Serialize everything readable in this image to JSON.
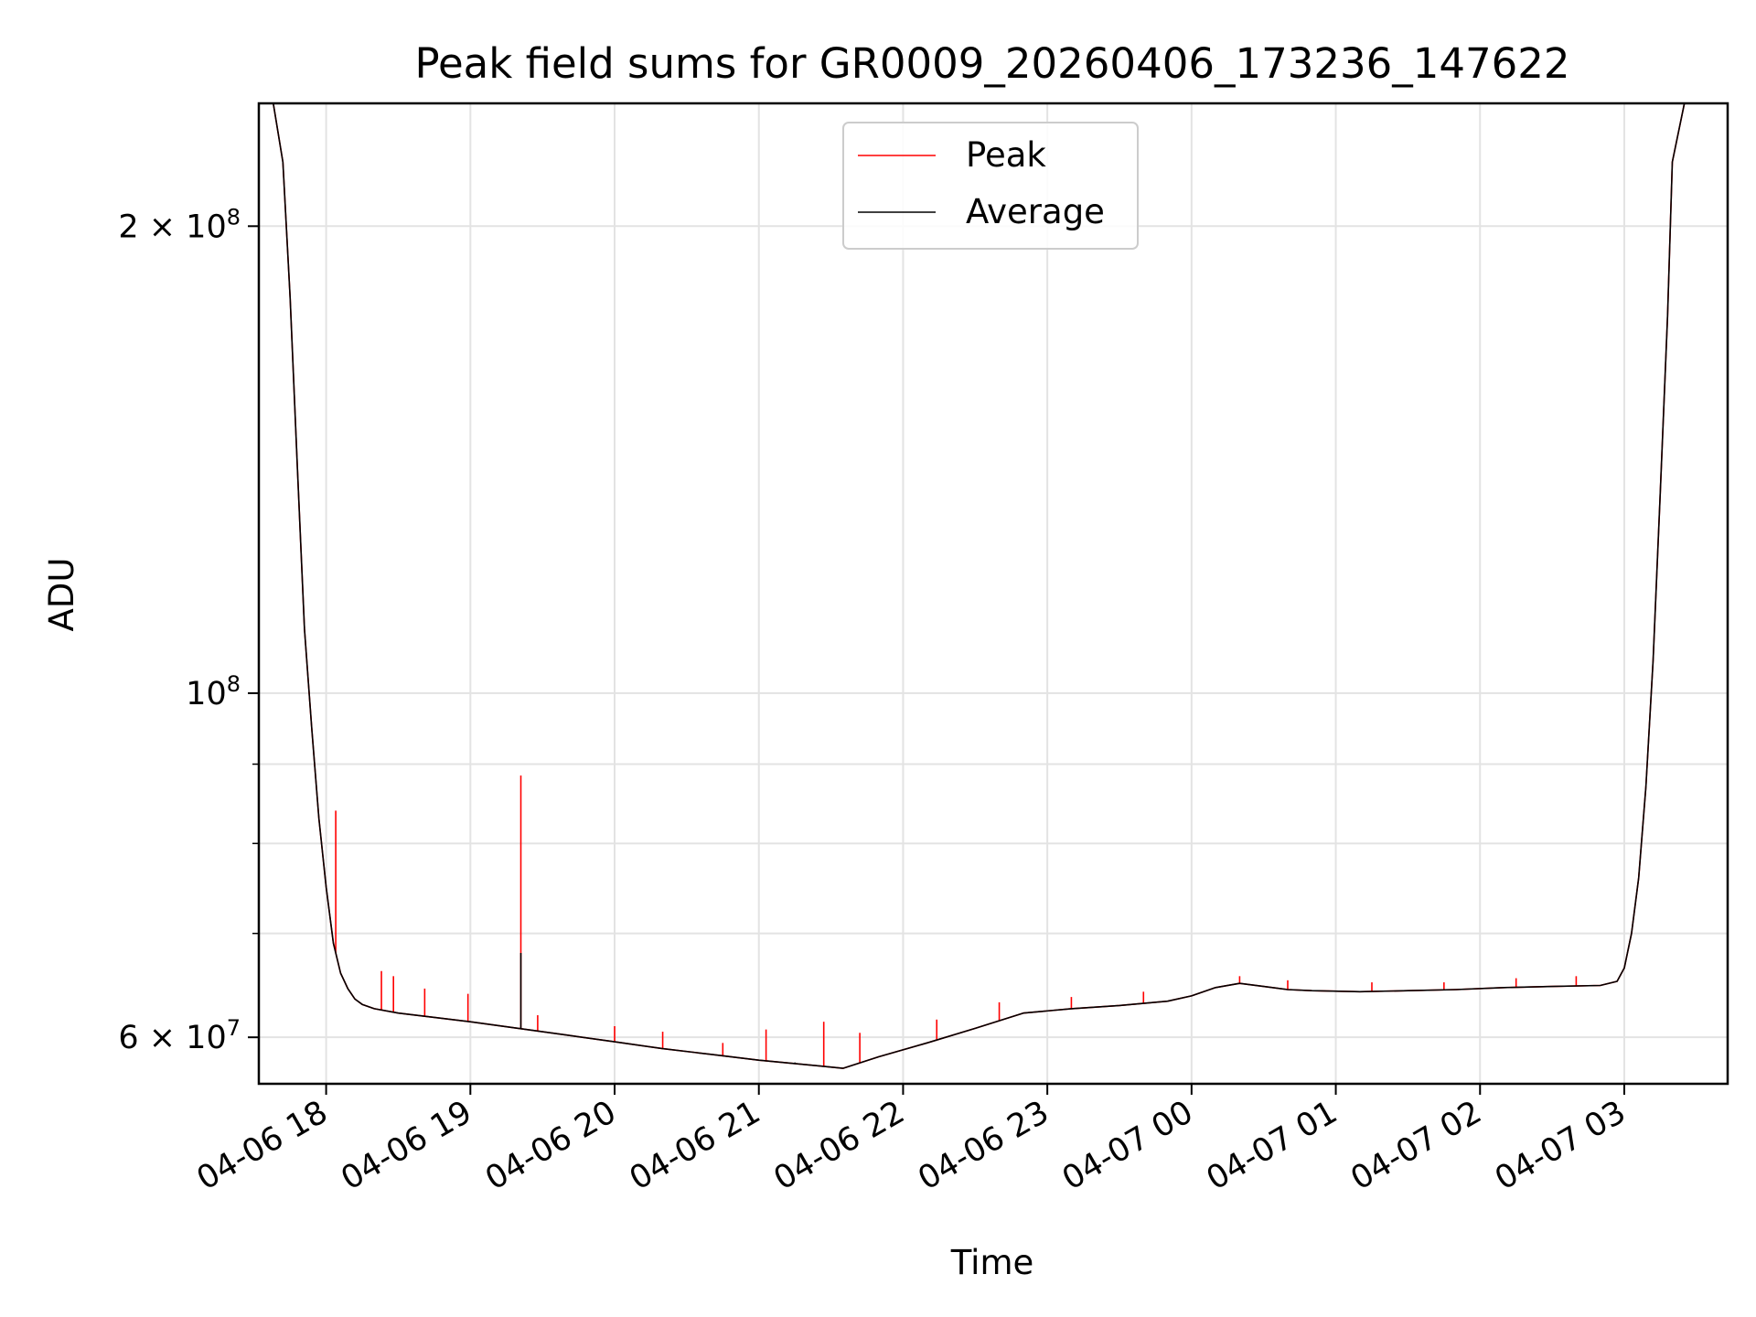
{
  "chart_data": {
    "type": "line",
    "title": "Peak field sums for GR0009_20260406_173236_147622",
    "xlabel": "Time",
    "ylabel": "ADU",
    "y_scale": "log",
    "ylim": [
      56000000,
      240000000
    ],
    "xlim": [
      "2026-04-06 17:32",
      "2026-04-07 03:43"
    ],
    "x_ticks": [
      {
        "value": "2026-04-06 18:00",
        "label": "04-06 18"
      },
      {
        "value": "2026-04-06 19:00",
        "label": "04-06 19"
      },
      {
        "value": "2026-04-06 20:00",
        "label": "04-06 20"
      },
      {
        "value": "2026-04-06 21:00",
        "label": "04-06 21"
      },
      {
        "value": "2026-04-06 22:00",
        "label": "04-06 22"
      },
      {
        "value": "2026-04-06 23:00",
        "label": "04-06 23"
      },
      {
        "value": "2026-04-07 00:00",
        "label": "04-07 00"
      },
      {
        "value": "2026-04-07 01:00",
        "label": "04-07 01"
      },
      {
        "value": "2026-04-07 02:00",
        "label": "04-07 02"
      },
      {
        "value": "2026-04-07 03:00",
        "label": "04-07 03"
      }
    ],
    "y_major_ticks": [
      {
        "value": 60000000,
        "base": "6 × 10",
        "exp": "7"
      },
      {
        "value": 100000000,
        "base": "10",
        "exp": "8"
      },
      {
        "value": 200000000,
        "base": "2 × 10",
        "exp": "8"
      }
    ],
    "y_minor_ticks": [
      70000000,
      80000000,
      90000000
    ],
    "grid": true,
    "legend_position": "upper center",
    "series": [
      {
        "name": "Peak",
        "color": "#ff0000",
        "x": [
          "2026-04-06 17:32",
          "2026-04-06 17:38",
          "2026-04-06 17:42",
          "2026-04-06 17:45",
          "2026-04-06 17:48",
          "2026-04-06 17:51",
          "2026-04-06 17:54",
          "2026-04-06 17:57",
          "2026-04-06 18:00",
          "2026-04-06 18:03",
          "2026-04-06 18:06",
          "2026-04-06 18:09",
          "2026-04-06 18:12",
          "2026-04-06 18:15",
          "2026-04-06 18:20",
          "2026-04-06 18:30",
          "2026-04-06 18:45",
          "2026-04-06 19:00",
          "2026-04-06 19:20",
          "2026-04-06 19:40",
          "2026-04-06 20:00",
          "2026-04-06 20:20",
          "2026-04-06 20:40",
          "2026-04-06 21:00",
          "2026-04-06 21:20",
          "2026-04-06 21:35",
          "2026-04-06 21:50",
          "2026-04-06 22:10",
          "2026-04-06 22:30",
          "2026-04-06 22:50",
          "2026-04-06 23:10",
          "2026-04-06 23:30",
          "2026-04-06 23:50",
          "2026-04-07 00:00",
          "2026-04-07 00:10",
          "2026-04-07 00:20",
          "2026-04-07 00:30",
          "2026-04-07 00:40",
          "2026-04-07 00:50",
          "2026-04-07 01:10",
          "2026-04-07 01:30",
          "2026-04-07 01:50",
          "2026-04-07 02:10",
          "2026-04-07 02:30",
          "2026-04-07 02:50",
          "2026-04-07 02:57",
          "2026-04-07 03:00",
          "2026-04-07 03:03",
          "2026-04-07 03:06",
          "2026-04-07 03:09",
          "2026-04-07 03:12",
          "2026-04-07 03:15",
          "2026-04-07 03:18",
          "2026-04-07 03:20",
          "2026-04-07 03:25",
          "2026-04-07 03:43"
        ],
        "y": [
          240000000,
          240000000,
          220000000,
          180000000,
          140000000,
          110000000,
          95000000,
          83000000,
          75000000,
          69000000,
          66000000,
          64500000,
          63500000,
          63000000,
          62600000,
          62200000,
          61800000,
          61400000,
          60800000,
          60200000,
          59600000,
          59000000,
          58500000,
          58000000,
          57600000,
          57300000,
          58300000,
          59500000,
          60800000,
          62200000,
          62600000,
          62900000,
          63300000,
          63800000,
          64600000,
          65000000,
          64700000,
          64400000,
          64300000,
          64200000,
          64300000,
          64400000,
          64600000,
          64700000,
          64800000,
          65200000,
          66500000,
          70000000,
          76000000,
          87000000,
          105000000,
          135000000,
          175000000,
          220000000,
          240000000,
          240000000
        ],
        "spikes": [
          {
            "x": "2026-04-06 18:04",
            "y": 84000000
          },
          {
            "x": "2026-04-06 18:23",
            "y": 66200000
          },
          {
            "x": "2026-04-06 18:28",
            "y": 65700000
          },
          {
            "x": "2026-04-06 18:41",
            "y": 64500000
          },
          {
            "x": "2026-04-06 18:59",
            "y": 64000000
          },
          {
            "x": "2026-04-06 19:21",
            "y": 88500000
          },
          {
            "x": "2026-04-06 19:28",
            "y": 62000000
          },
          {
            "x": "2026-04-06 20:00",
            "y": 61000000
          },
          {
            "x": "2026-04-06 20:20",
            "y": 60500000
          },
          {
            "x": "2026-04-06 20:45",
            "y": 59500000
          },
          {
            "x": "2026-04-06 21:03",
            "y": 60700000
          },
          {
            "x": "2026-04-06 21:27",
            "y": 61400000
          },
          {
            "x": "2026-04-06 21:42",
            "y": 60400000
          },
          {
            "x": "2026-04-06 22:14",
            "y": 61600000
          },
          {
            "x": "2026-04-06 22:40",
            "y": 63200000
          },
          {
            "x": "2026-04-06 23:10",
            "y": 63700000
          },
          {
            "x": "2026-04-06 23:40",
            "y": 64200000
          },
          {
            "x": "2026-04-07 00:20",
            "y": 65700000
          },
          {
            "x": "2026-04-07 00:40",
            "y": 65300000
          },
          {
            "x": "2026-04-07 01:15",
            "y": 65100000
          },
          {
            "x": "2026-04-07 01:45",
            "y": 65100000
          },
          {
            "x": "2026-04-07 02:15",
            "y": 65500000
          },
          {
            "x": "2026-04-07 02:40",
            "y": 65700000
          }
        ]
      },
      {
        "name": "Average",
        "color": "#000000",
        "x": [
          "2026-04-06 17:32",
          "2026-04-06 17:38",
          "2026-04-06 17:42",
          "2026-04-06 17:45",
          "2026-04-06 17:48",
          "2026-04-06 17:51",
          "2026-04-06 17:54",
          "2026-04-06 17:57",
          "2026-04-06 18:00",
          "2026-04-06 18:03",
          "2026-04-06 18:06",
          "2026-04-06 18:09",
          "2026-04-06 18:12",
          "2026-04-06 18:15",
          "2026-04-06 18:20",
          "2026-04-06 18:30",
          "2026-04-06 18:45",
          "2026-04-06 19:00",
          "2026-04-06 19:20",
          "2026-04-06 19:40",
          "2026-04-06 20:00",
          "2026-04-06 20:20",
          "2026-04-06 20:40",
          "2026-04-06 21:00",
          "2026-04-06 21:20",
          "2026-04-06 21:35",
          "2026-04-06 21:50",
          "2026-04-06 22:10",
          "2026-04-06 22:30",
          "2026-04-06 22:50",
          "2026-04-06 23:10",
          "2026-04-06 23:30",
          "2026-04-06 23:50",
          "2026-04-07 00:00",
          "2026-04-07 00:10",
          "2026-04-07 00:20",
          "2026-04-07 00:30",
          "2026-04-07 00:40",
          "2026-04-07 00:50",
          "2026-04-07 01:10",
          "2026-04-07 01:30",
          "2026-04-07 01:50",
          "2026-04-07 02:10",
          "2026-04-07 02:30",
          "2026-04-07 02:50",
          "2026-04-07 02:57",
          "2026-04-07 03:00",
          "2026-04-07 03:03",
          "2026-04-07 03:06",
          "2026-04-07 03:09",
          "2026-04-07 03:12",
          "2026-04-07 03:15",
          "2026-04-07 03:18",
          "2026-04-07 03:20",
          "2026-04-07 03:25",
          "2026-04-07 03:43"
        ],
        "y": [
          240000000,
          240000000,
          220000000,
          180000000,
          140000000,
          110000000,
          95000000,
          83000000,
          75000000,
          69000000,
          66000000,
          64500000,
          63500000,
          63000000,
          62600000,
          62200000,
          61800000,
          61400000,
          60800000,
          60200000,
          59600000,
          59000000,
          58500000,
          58000000,
          57600000,
          57300000,
          58300000,
          59500000,
          60800000,
          62200000,
          62600000,
          62900000,
          63300000,
          63800000,
          64600000,
          65000000,
          64700000,
          64400000,
          64300000,
          64200000,
          64300000,
          64400000,
          64600000,
          64700000,
          64800000,
          65200000,
          66500000,
          70000000,
          76000000,
          87000000,
          105000000,
          135000000,
          175000000,
          220000000,
          240000000,
          240000000
        ],
        "spikes": [
          {
            "x": "2026-04-06 19:21",
            "y": 68000000
          },
          {
            "x": "2026-04-06 21:15",
            "y": 57800000
          }
        ]
      }
    ]
  }
}
